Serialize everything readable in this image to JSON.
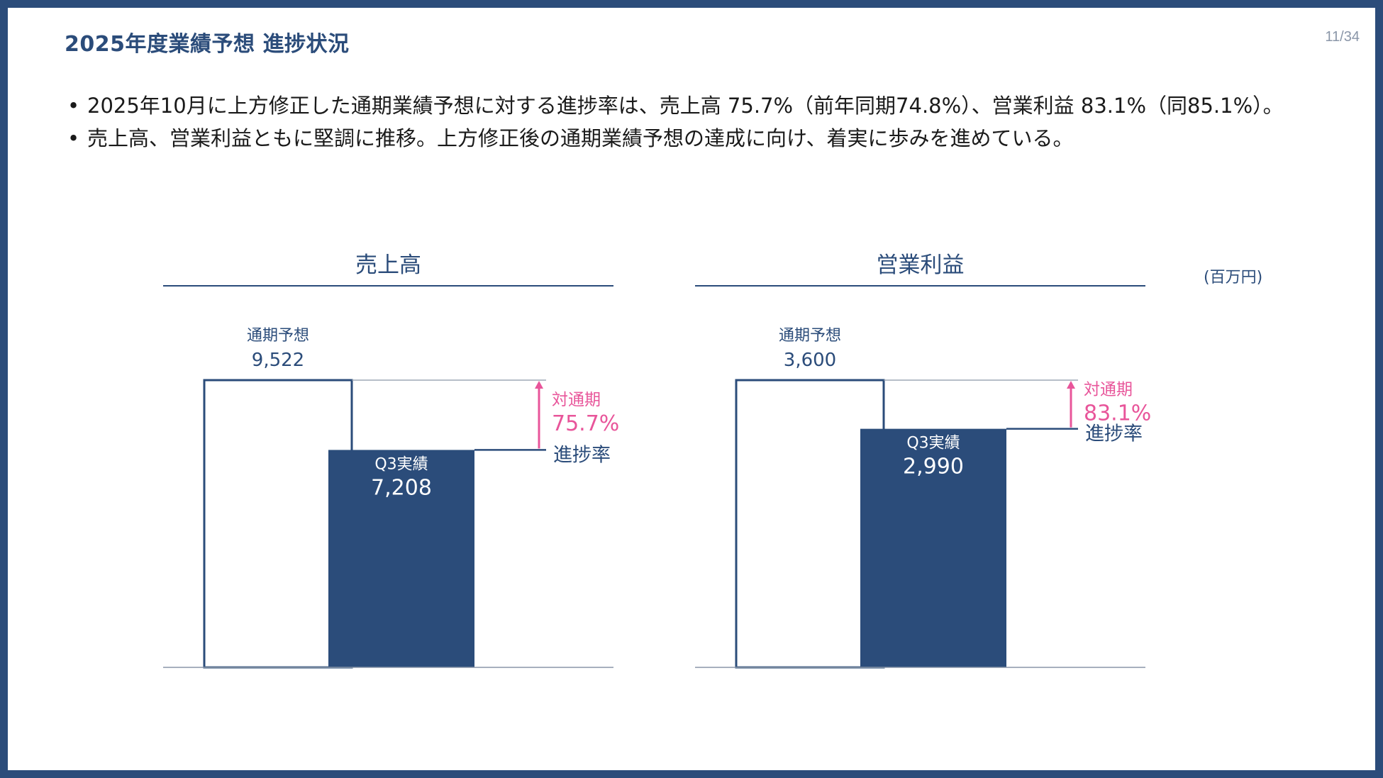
{
  "page": {
    "title": "2025年度業績予想 進捗状況",
    "page_number": "11/34",
    "unit": "(百万円)"
  },
  "bullets": [
    "2025年10月に上方修正した通期業績予想に対する進捗率は、売上高 75.7%（前年同期74.8%）、営業利益 83.1%（同85.1%）。",
    "売上高、営業利益ともに堅調に推移。上方修正後の通期業績予想の達成に向け、着実に歩みを進めている。"
  ],
  "colors": {
    "navy": "#2b4c7a",
    "pink": "#e8559a",
    "gridline": "#8a96a8"
  },
  "chart_data": [
    {
      "type": "bar",
      "title": "売上高",
      "forecast_label": "通期予想",
      "forecast_value": 9522,
      "forecast_display": "9,522",
      "actual_label": "Q3実績",
      "actual_value": 7208,
      "actual_display": "7,208",
      "progress_label_top": "対通期",
      "progress_value": "75.7%",
      "progress_label_bottom": "進捗率",
      "unit": "百万円"
    },
    {
      "type": "bar",
      "title": "営業利益",
      "forecast_label": "通期予想",
      "forecast_value": 3600,
      "forecast_display": "3,600",
      "actual_label": "Q3実績",
      "actual_value": 2990,
      "actual_display": "2,990",
      "progress_label_top": "対通期",
      "progress_value": "83.1%",
      "progress_label_bottom": "進捗率",
      "unit": "百万円"
    }
  ]
}
